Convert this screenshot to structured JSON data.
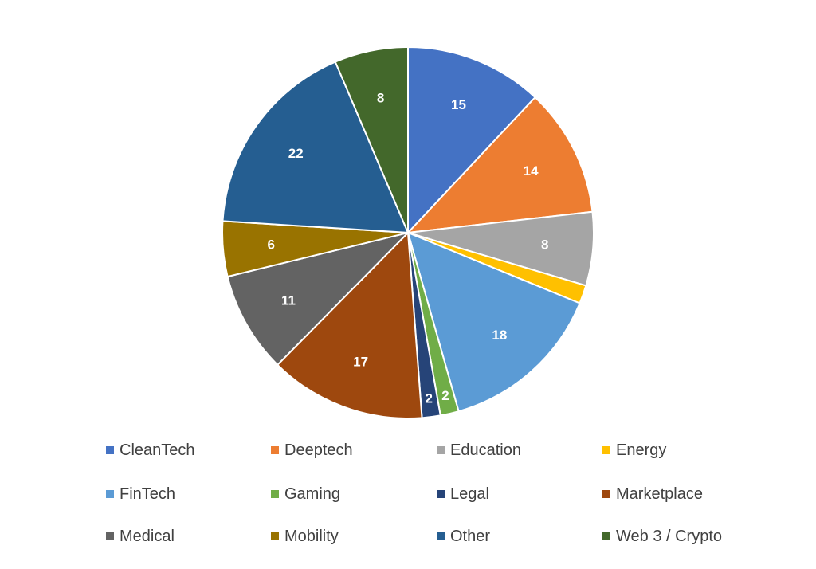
{
  "chart_data": {
    "type": "pie",
    "title": "",
    "start_angle": "12 o'clock",
    "direction": "clockwise",
    "legend_position": "bottom",
    "slices": [
      {
        "label": "CleanTech",
        "value": 15,
        "color": "#4472C4",
        "show_label": true
      },
      {
        "label": "Deeptech",
        "value": 14,
        "color": "#ED7D31",
        "show_label": true
      },
      {
        "label": "Education",
        "value": 8,
        "color": "#A5A5A5",
        "show_label": true
      },
      {
        "label": "Energy",
        "value": 2,
        "color": "#FFC000",
        "show_label": false
      },
      {
        "label": "FinTech",
        "value": 18,
        "color": "#5B9BD5",
        "show_label": true
      },
      {
        "label": "Gaming",
        "value": 2,
        "color": "#70AD47",
        "show_label": true
      },
      {
        "label": "Legal",
        "value": 2,
        "color": "#264478",
        "show_label": true
      },
      {
        "label": "Marketplace",
        "value": 17,
        "color": "#9E480E",
        "show_label": true
      },
      {
        "label": "Medical",
        "value": 11,
        "color": "#636363",
        "show_label": true
      },
      {
        "label": "Mobility",
        "value": 6,
        "color": "#997300",
        "show_label": true
      },
      {
        "label": "Other",
        "value": 22,
        "color": "#255E91",
        "show_label": true
      },
      {
        "label": "Web 3 / Crypto",
        "value": 8,
        "color": "#43682B",
        "show_label": true
      }
    ]
  }
}
